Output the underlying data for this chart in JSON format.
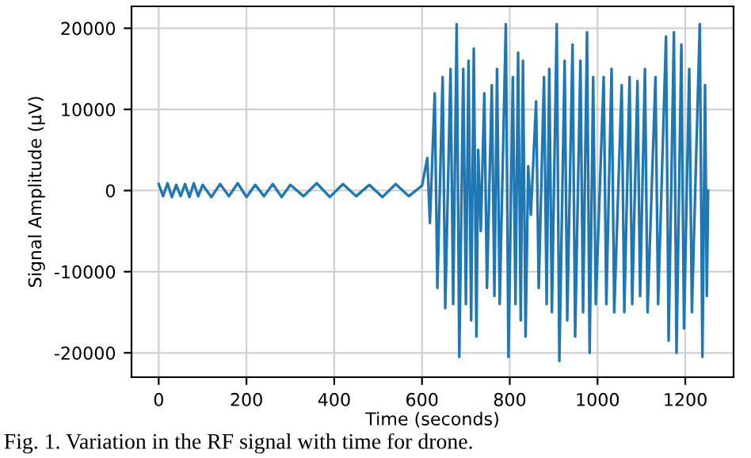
{
  "chart_data": {
    "type": "line",
    "xlabel": "Time (seconds)",
    "ylabel": "Signal Amplitude (µV)",
    "annotations": [
      "Fig. 1. Variation in the RF signal with time for drone."
    ],
    "x": [
      0,
      10,
      20,
      30,
      40,
      50,
      60,
      70,
      80,
      90,
      100,
      120,
      140,
      160,
      180,
      200,
      220,
      240,
      260,
      280,
      300,
      330,
      360,
      390,
      420,
      450,
      480,
      510,
      540,
      570,
      600,
      612,
      618,
      629,
      635,
      647,
      653,
      665,
      671,
      679,
      685,
      694,
      700,
      706,
      712,
      718,
      724,
      728,
      734,
      742,
      748,
      759,
      765,
      771,
      777,
      791,
      797,
      807,
      813,
      819,
      825,
      830,
      836,
      842,
      848,
      860,
      866,
      878,
      884,
      890,
      896,
      907,
      913,
      925,
      931,
      943,
      949,
      961,
      967,
      976,
      982,
      990,
      996,
      1014,
      1020,
      1032,
      1038,
      1055,
      1061,
      1073,
      1079,
      1091,
      1097,
      1108,
      1114,
      1132,
      1138,
      1156,
      1162,
      1174,
      1180,
      1191,
      1197,
      1209,
      1215,
      1233,
      1239,
      1245,
      1249,
      1252
    ],
    "series": [
      {
        "color": "#1f77b4",
        "values": [
          800,
          -700,
          900,
          -800,
          700,
          -700,
          800,
          -800,
          900,
          -700,
          700,
          -800,
          800,
          -700,
          900,
          -800,
          700,
          -700,
          800,
          -800,
          700,
          -700,
          900,
          -800,
          800,
          -700,
          700,
          -800,
          800,
          -700,
          600,
          4000,
          -4000,
          12000,
          -12000,
          14000,
          -14500,
          15000,
          -14000,
          20500,
          -20500,
          15000,
          -14000,
          16000,
          -16000,
          17500,
          -18000,
          5000,
          -5000,
          12000,
          -12000,
          13000,
          -13000,
          15000,
          -14000,
          20500,
          -20500,
          14000,
          -14000,
          17000,
          -16000,
          16000,
          -18000,
          3000,
          -3000,
          11000,
          -12000,
          14000,
          -14000,
          15000,
          -15000,
          20500,
          -21000,
          16000,
          -16000,
          18000,
          -18000,
          16000,
          -15000,
          19500,
          -20000,
          14000,
          -14000,
          14000,
          -14000,
          15000,
          -15000,
          13000,
          -15000,
          14000,
          -14000,
          13500,
          -13000,
          15000,
          -15000,
          14000,
          -14000,
          19000,
          -18500,
          19500,
          -20000,
          18000,
          -17000,
          15000,
          -15000,
          20500,
          -20500,
          13000,
          -13000,
          0
        ]
      }
    ],
    "xlim": [
      -62,
      1310
    ],
    "ylim": [
      -23000,
      22700
    ],
    "xticks": [
      0,
      200,
      400,
      600,
      800,
      1000,
      1200
    ],
    "yticks": [
      -20000,
      -10000,
      0,
      10000,
      20000
    ],
    "grid": true,
    "legend": false,
    "marker": "none",
    "line_style": "solid"
  }
}
